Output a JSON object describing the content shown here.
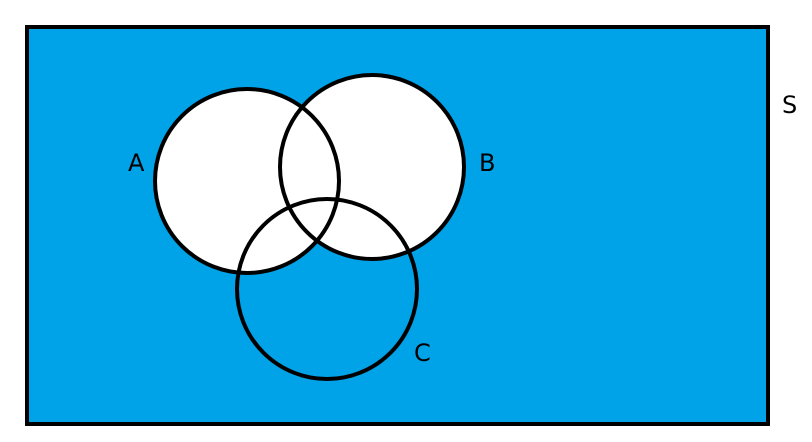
{
  "colors": {
    "universe_fill": "#00a2e8",
    "set_fill": "#ffffff",
    "outline": "#000000",
    "background": "#ffffff"
  },
  "labels": {
    "universe": "S",
    "set_a": "A",
    "set_b": "B",
    "set_c": "C"
  },
  "shading": {
    "universe_outside_sets": "shaded",
    "set_a": "unshaded",
    "set_b": "unshaded",
    "set_c_only": "shaded"
  }
}
